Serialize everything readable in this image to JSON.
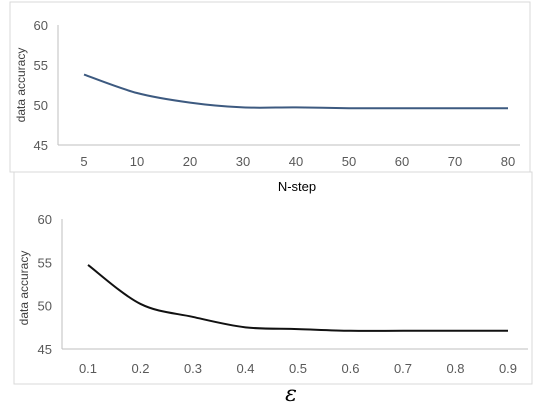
{
  "chart_data": [
    {
      "type": "line",
      "xlabel": "N-step",
      "ylabel": "data accuracy",
      "ylim": [
        45,
        60
      ],
      "yticks": [
        "45",
        "50",
        "55",
        "60"
      ],
      "categories": [
        "5",
        "10",
        "20",
        "30",
        "40",
        "50",
        "60",
        "70",
        "80"
      ],
      "series": [
        {
          "values": [
            53.8,
            51.5,
            50.3,
            49.7,
            49.7,
            49.6,
            49.6,
            49.6,
            49.6
          ],
          "color": "#3d5a80"
        }
      ],
      "grid": false
    },
    {
      "type": "line",
      "xlabel": "ε",
      "ylabel": "data accuracy",
      "ylim": [
        45,
        60
      ],
      "yticks": [
        "45",
        "50",
        "55",
        "60"
      ],
      "categories": [
        "0.1",
        "0.2",
        "0.3",
        "0.4",
        "0.5",
        "0.6",
        "0.7",
        "0.8",
        "0.9"
      ],
      "series": [
        {
          "values": [
            54.7,
            50.2,
            48.7,
            47.5,
            47.3,
            47.1,
            47.1,
            47.1,
            47.1
          ],
          "color": "#111111"
        }
      ],
      "grid": false
    }
  ]
}
